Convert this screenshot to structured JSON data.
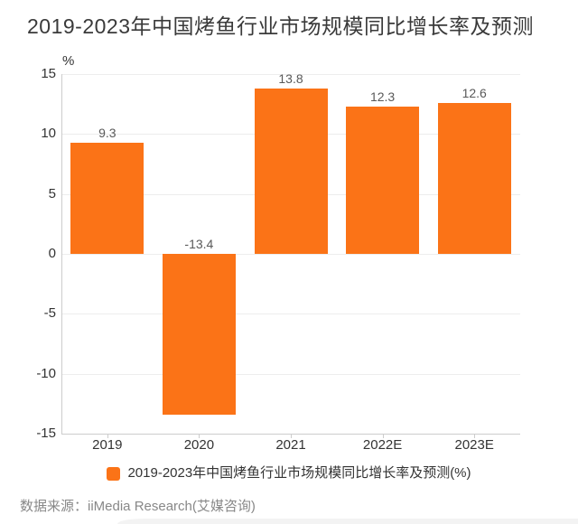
{
  "title": "2019-2023年中国烤鱼行业市场规模同比增长率及预测",
  "legend": {
    "label": "2019-2023年中国烤鱼行业市场规模同比增长率及预测(%)"
  },
  "source": "数据来源：iiMedia Research(艾媒咨询)",
  "colors": {
    "bar": "#FB7317",
    "grid": "#ededed",
    "axis": "#cccccc",
    "title_text": "#3a3a3a",
    "tick_text": "#333333",
    "value_text": "#595959",
    "source_text": "#888888"
  },
  "chart_data": {
    "type": "bar",
    "title": "2019-2023年中国烤鱼行业市场规模同比增长率及预测",
    "categories": [
      "2019",
      "2020",
      "2021",
      "2022E",
      "2023E"
    ],
    "values": [
      9.3,
      -13.4,
      13.8,
      12.3,
      12.6
    ],
    "value_labels": [
      "9.3",
      "-13.4",
      "13.8",
      "12.3",
      "12.6"
    ],
    "series_name": "2019-2023年中国烤鱼行业市场规模同比增长率及预测(%)",
    "ylabel": "%",
    "ylim": [
      -15,
      15
    ],
    "yticks": [
      15,
      10,
      5,
      0,
      -5,
      -10,
      -15
    ],
    "grid": true,
    "legend_position": "bottom"
  }
}
